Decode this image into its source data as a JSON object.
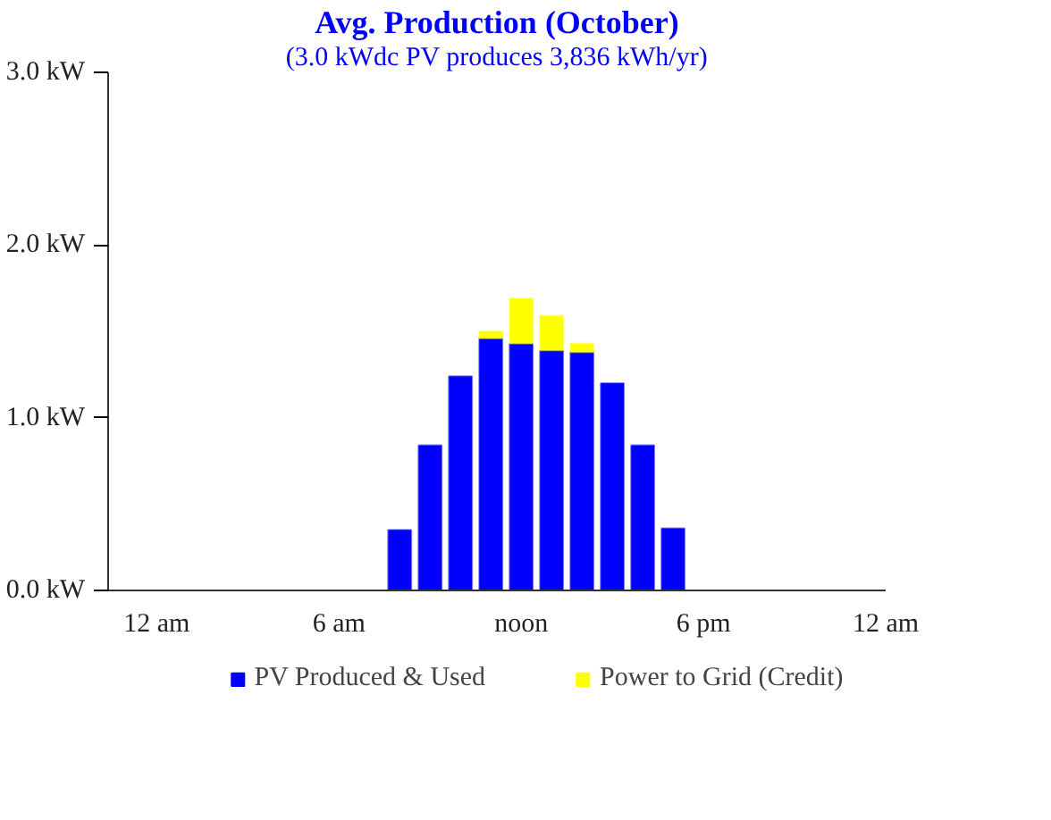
{
  "chart_data": {
    "type": "bar",
    "title": "Avg. Production (October)",
    "subtitle": "(3.0 kWdc PV produces 3,836 kWh/yr)",
    "stacked": true,
    "categories": [
      "12 am",
      null,
      null,
      null,
      null,
      null,
      "6 am",
      null,
      null,
      null,
      null,
      null,
      "noon",
      null,
      null,
      null,
      null,
      null,
      "6 pm",
      null,
      null,
      null,
      null,
      null,
      "12 am"
    ],
    "series": [
      {
        "name": "PV Produced & Used",
        "color": "#0000ff",
        "values": [
          null,
          null,
          null,
          null,
          null,
          null,
          null,
          null,
          0.35,
          0.84,
          1.24,
          1.46,
          1.43,
          1.39,
          1.38,
          1.2,
          0.84,
          0.36,
          null,
          null,
          null,
          null,
          null,
          null,
          null
        ]
      },
      {
        "name": "Power to Grid (Credit)",
        "color": "#ffff00",
        "values": [
          null,
          null,
          null,
          null,
          null,
          null,
          null,
          null,
          null,
          null,
          null,
          0.04,
          0.26,
          0.2,
          0.05,
          null,
          null,
          null,
          null,
          null,
          null,
          null,
          null,
          null,
          null
        ]
      }
    ],
    "ylim": [
      0,
      3
    ],
    "yticks": [
      {
        "value": 0,
        "label": "0.0 kW"
      },
      {
        "value": 1,
        "label": "1.0 kW"
      },
      {
        "value": 2,
        "label": "2.0 kW"
      },
      {
        "value": 3,
        "label": "3.0 kW"
      }
    ],
    "legend": "bottom"
  }
}
